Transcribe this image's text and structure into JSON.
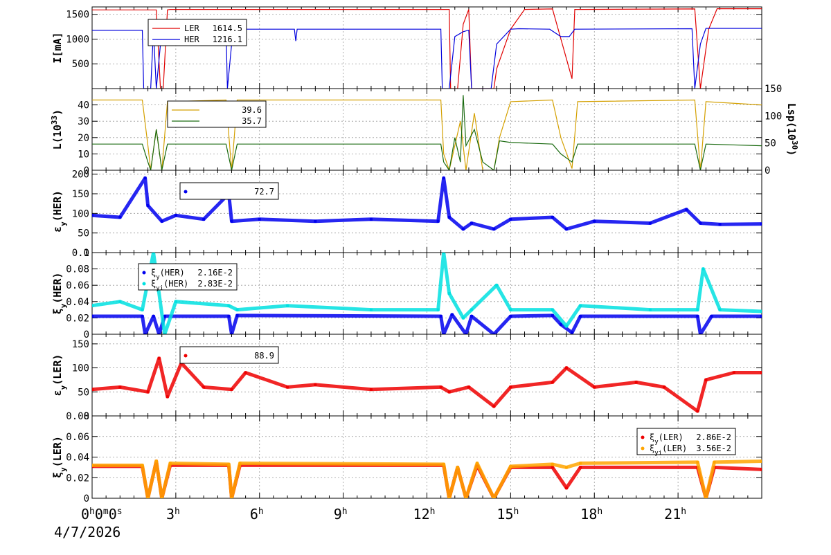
{
  "time_axis": {
    "origin_label": "0h0m0s",
    "date": "4/7/2026",
    "tick_hours": [
      3,
      6,
      9,
      12,
      15,
      18,
      21
    ],
    "range_hours": [
      0,
      24
    ]
  },
  "chart_data": [
    {
      "type": "line",
      "ylabel": "I[mA]",
      "ylim": [
        0,
        1650
      ],
      "yticks": [
        500,
        1000,
        1500
      ],
      "grid": true,
      "legend": {
        "placement": "top-left",
        "entries": [
          {
            "name": "LER",
            "value": "1614.5",
            "color": "#e00000"
          },
          {
            "name": "HER",
            "value": "1216.1",
            "color": "#0000dd"
          }
        ]
      },
      "series": [
        {
          "name": "LER",
          "color": "#e00000",
          "x": [
            0,
            2.3,
            2.45,
            2.55,
            2.7,
            2.8,
            12.8,
            12.85,
            13.1,
            13.3,
            13.5,
            13.6,
            13.8,
            14.4,
            14.5,
            15.0,
            15.5,
            16.5,
            17.2,
            17.3,
            17.5,
            21.6,
            21.8,
            22.1,
            22.4,
            24
          ],
          "y": [
            1590,
            1590,
            0,
            0,
            1590,
            1600,
            1600,
            0,
            0,
            1300,
            1600,
            0,
            0,
            0,
            400,
            1200,
            1600,
            1610,
            200,
            1600,
            1600,
            1610,
            0,
            1200,
            1614,
            1614
          ]
        },
        {
          "name": "HER",
          "color": "#0000dd",
          "x": [
            0,
            1.8,
            1.85,
            2.1,
            2.2,
            2.3,
            2.5,
            4.8,
            4.85,
            5.0,
            5.2,
            7.25,
            7.3,
            7.35,
            12.5,
            12.55,
            12.8,
            13.0,
            13.3,
            13.5,
            13.6,
            14.3,
            14.5,
            15.0,
            15.3,
            16.4,
            16.8,
            17.1,
            17.3,
            21.5,
            21.6,
            21.8,
            22.0,
            24
          ],
          "y": [
            1180,
            1180,
            0,
            0,
            1180,
            0,
            1190,
            1190,
            0,
            900,
            1200,
            1200,
            960,
            1200,
            1200,
            0,
            0,
            1050,
            1150,
            1180,
            0,
            0,
            900,
            1200,
            1210,
            1200,
            1050,
            1050,
            1200,
            1210,
            0,
            900,
            1216,
            1216
          ]
        }
      ]
    },
    {
      "type": "line",
      "ylabel": "L(10^33)",
      "ylabel_base": "L(10",
      "ylabel_exp": "33",
      "ylabel_tail": ")",
      "ylim": [
        0,
        50
      ],
      "yticks": [
        0,
        10,
        20,
        30,
        40
      ],
      "y2label_base": "Lsp(10",
      "y2label_exp": "30",
      "y2label_tail": ")",
      "y2lim": [
        0,
        150
      ],
      "y2ticks": [
        0,
        50,
        100,
        150
      ],
      "grid": true,
      "legend": {
        "placement": "top-left",
        "entries": [
          {
            "name": "",
            "value": "39.6",
            "color": "#d4a000"
          },
          {
            "name": "",
            "value": "35.7",
            "color": "#1a6a10"
          }
        ]
      },
      "series": [
        {
          "name": "",
          "color": "#d4a000",
          "x": [
            0,
            1.8,
            2.0,
            2.1,
            2.3,
            2.5,
            2.7,
            4.8,
            5.0,
            5.2,
            12.5,
            12.6,
            12.8,
            13.2,
            13.4,
            13.7,
            14.0,
            14.4,
            14.6,
            15.0,
            16.5,
            16.8,
            17.2,
            17.4,
            21.6,
            21.8,
            22.0,
            24
          ],
          "y": [
            43,
            43,
            15,
            0,
            25,
            0,
            42,
            43,
            0,
            43,
            43,
            10,
            0,
            30,
            0,
            35,
            0,
            0,
            20,
            42,
            43,
            20,
            1,
            42,
            43,
            0,
            42,
            40
          ]
        },
        {
          "name": "",
          "color": "#1a6a10",
          "x": [
            0,
            1.8,
            2.0,
            2.1,
            2.3,
            2.5,
            2.7,
            4.8,
            5.0,
            5.2,
            12.5,
            12.6,
            12.8,
            13.0,
            13.2,
            13.3,
            13.4,
            13.7,
            14.0,
            14.4,
            14.6,
            15.0,
            16.5,
            16.8,
            17.2,
            17.4,
            21.6,
            21.8,
            22.0,
            24
          ],
          "y": [
            16,
            16,
            5,
            0,
            25,
            0,
            16,
            16,
            0,
            16,
            16,
            5,
            0,
            20,
            5,
            46,
            15,
            25,
            5,
            0,
            18,
            17,
            16,
            10,
            5,
            16,
            16,
            0,
            16,
            15
          ]
        }
      ]
    },
    {
      "type": "scatter",
      "ylabel": "εy(HER)",
      "ylabel_base": "ε",
      "ylabel_sub": "y",
      "ylabel_tail": "(HER)",
      "ylim": [
        0,
        210
      ],
      "yticks": [
        0,
        50,
        100,
        150,
        200
      ],
      "grid": true,
      "legend": {
        "placement": "top-left",
        "entries": [
          {
            "name": "",
            "value": "72.7",
            "color": "#0000ee"
          }
        ]
      },
      "series": [
        {
          "name": "",
          "color": "#0000ee",
          "x": [
            0,
            1.0,
            1.9,
            2.0,
            2.5,
            3.0,
            4.0,
            4.9,
            5.0,
            6.0,
            8.0,
            10.0,
            12.4,
            12.6,
            12.8,
            13.3,
            13.6,
            14.4,
            15.0,
            16.5,
            17.0,
            18.0,
            20.0,
            21.3,
            21.8,
            22.5,
            24
          ],
          "y": [
            95,
            90,
            190,
            120,
            80,
            95,
            85,
            150,
            80,
            85,
            80,
            85,
            80,
            190,
            90,
            60,
            75,
            60,
            85,
            90,
            60,
            80,
            75,
            110,
            75,
            72,
            73
          ]
        }
      ]
    },
    {
      "type": "scatter",
      "ylabel": "ξy(HER)",
      "ylabel_base": "ξ",
      "ylabel_sub": "y",
      "ylabel_tail": "(HER)",
      "ylim": [
        0,
        0.1
      ],
      "yticks": [
        0,
        0.02,
        0.04,
        0.06,
        0.08,
        0.1
      ],
      "ytick_labels": [
        "0",
        "0.02",
        "0.04",
        "0.06",
        "0.08",
        "0.1"
      ],
      "grid": true,
      "legend": {
        "placement": "top-left",
        "entries": [
          {
            "name_base": "ξ",
            "name_sub": "y",
            "name_tail": "(HER)",
            "value": "2.16E-2",
            "color": "#0000ee"
          },
          {
            "name_base": "ξ",
            "name_sub": "yi",
            "name_tail": "(HER)",
            "value": "2.83E-2",
            "color": "#00e0e0"
          }
        ]
      },
      "series": [
        {
          "name": "ξy(HER)",
          "color": "#0000ee",
          "x": [
            0,
            1.8,
            1.9,
            2.2,
            2.4,
            2.6,
            4.9,
            5.0,
            5.2,
            12.5,
            12.6,
            12.9,
            13.4,
            13.6,
            14.4,
            15.0,
            16.5,
            16.8,
            17.2,
            17.5,
            21.7,
            21.8,
            22.2,
            24
          ],
          "y": [
            0.022,
            0.022,
            0.0,
            0.022,
            0.0,
            0.022,
            0.022,
            0.0,
            0.023,
            0.022,
            0.0,
            0.024,
            0.0,
            0.022,
            0.0,
            0.022,
            0.023,
            0.012,
            0.002,
            0.022,
            0.022,
            0.0,
            0.022,
            0.022
          ]
        },
        {
          "name": "ξyi(HER)",
          "color": "#00e0e0",
          "x": [
            0,
            1.0,
            1.8,
            2.2,
            2.6,
            3.0,
            4.9,
            5.2,
            7.0,
            10.0,
            12.4,
            12.6,
            12.8,
            13.3,
            13.6,
            14.5,
            15.0,
            16.5,
            17.0,
            17.5,
            20.0,
            21.7,
            21.9,
            22.5,
            24
          ],
          "y": [
            0.035,
            0.04,
            0.03,
            0.1,
            0.0,
            0.04,
            0.035,
            0.03,
            0.035,
            0.03,
            0.03,
            0.1,
            0.05,
            0.02,
            0.03,
            0.06,
            0.03,
            0.03,
            0.01,
            0.035,
            0.03,
            0.03,
            0.08,
            0.03,
            0.028
          ]
        }
      ]
    },
    {
      "type": "scatter",
      "ylabel": "εy(LER)",
      "ylabel_base": "ε",
      "ylabel_sub": "y",
      "ylabel_tail": "(LER)",
      "ylim": [
        0,
        170
      ],
      "yticks": [
        0,
        50,
        100,
        150
      ],
      "grid": true,
      "legend": {
        "placement": "top-left",
        "entries": [
          {
            "name": "",
            "value": "88.9",
            "color": "#ee0000"
          }
        ]
      },
      "series": [
        {
          "name": "",
          "color": "#ee0000",
          "x": [
            0,
            1.0,
            2.0,
            2.4,
            2.7,
            3.2,
            4.0,
            5.0,
            5.5,
            7.0,
            8.0,
            10.0,
            12.5,
            12.8,
            13.5,
            14.4,
            15.0,
            16.5,
            17.0,
            18.0,
            19.5,
            20.5,
            21.7,
            22.0,
            23.0,
            24
          ],
          "y": [
            55,
            60,
            50,
            120,
            40,
            110,
            60,
            55,
            90,
            60,
            65,
            55,
            60,
            50,
            60,
            20,
            60,
            70,
            100,
            60,
            70,
            60,
            10,
            75,
            90,
            90
          ]
        }
      ]
    },
    {
      "type": "scatter",
      "ylabel": "ξy(LER)",
      "ylabel_base": "ξ",
      "ylabel_sub": "y",
      "ylabel_tail": "(LER)",
      "ylim": [
        0,
        0.08
      ],
      "yticks": [
        0,
        0.02,
        0.04,
        0.06,
        0.08
      ],
      "ytick_labels": [
        "0",
        "0.02",
        "0.04",
        "0.06",
        "0.08"
      ],
      "grid": true,
      "legend": {
        "placement": "top-right",
        "entries": [
          {
            "name_base": "ξ",
            "name_sub": "y",
            "name_tail": "(LER)",
            "value": "2.86E-2",
            "color": "#ee0000"
          },
          {
            "name_base": "ξ",
            "name_sub": "yi",
            "name_tail": "(LER)",
            "value": "3.56E-2",
            "color": "#ffa500"
          }
        ]
      },
      "series": [
        {
          "name": "ξy(LER)",
          "color": "#ee0000",
          "x": [
            0,
            1.8,
            2.0,
            2.3,
            2.5,
            2.8,
            4.9,
            5.0,
            5.3,
            12.6,
            12.8,
            13.1,
            13.4,
            13.8,
            14.4,
            15.0,
            16.5,
            17.0,
            17.5,
            21.7,
            22.0,
            22.3,
            24
          ],
          "y": [
            0.031,
            0.031,
            0.0,
            0.036,
            0.0,
            0.032,
            0.032,
            0.0,
            0.032,
            0.032,
            0.0,
            0.03,
            0.0,
            0.032,
            0.0,
            0.03,
            0.03,
            0.01,
            0.03,
            0.03,
            0.0,
            0.03,
            0.028
          ]
        },
        {
          "name": "ξyi(LER)",
          "color": "#ffa500",
          "x": [
            0,
            1.8,
            2.0,
            2.3,
            2.5,
            2.8,
            4.9,
            5.0,
            5.3,
            12.6,
            12.8,
            13.1,
            13.4,
            13.8,
            14.4,
            15.0,
            16.5,
            17.0,
            17.5,
            21.7,
            22.0,
            22.3,
            24
          ],
          "y": [
            0.032,
            0.032,
            0.0,
            0.036,
            0.0,
            0.034,
            0.033,
            0.0,
            0.034,
            0.033,
            0.0,
            0.03,
            0.0,
            0.034,
            0.0,
            0.031,
            0.033,
            0.03,
            0.034,
            0.035,
            0.0,
            0.035,
            0.036
          ]
        }
      ]
    }
  ]
}
